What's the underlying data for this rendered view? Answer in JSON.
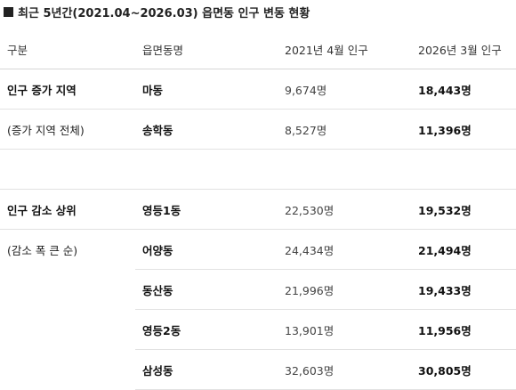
{
  "title": "최근 5년간(2021.04~2026.03) 읍면동 인구 변동 현황",
  "headers": [
    "구분",
    "읍면동명",
    "2021년 4월 인구",
    "2026년 3월 인구"
  ],
  "rows": [
    {
      "group": "인구 증가 지역",
      "dong": "마동",
      "pop2021": "9,674명",
      "pop2026": "18,443명"
    },
    {
      "group": "(증가 지역 전체)",
      "dong": "송학동",
      "pop2021": "8,527명",
      "pop2026": "11,396명"
    },
    {
      "group": "인구 감소 상위",
      "dong": "영등1동",
      "pop2021": "22,530명",
      "pop2026": "19,532명"
    },
    {
      "group": "(감소 폭 큰 순)",
      "dong": "어양동",
      "pop2021": "24,434명",
      "pop2026": "21,494명"
    },
    {
      "group": "",
      "dong": "동산동",
      "pop2021": "21,996명",
      "pop2026": "19,433명"
    },
    {
      "group": "",
      "dong": "영등2동",
      "pop2021": "13,901명",
      "pop2026": "11,956명"
    },
    {
      "group": "",
      "dong": "삼성동",
      "pop2021": "32,603명",
      "pop2026": "30,805명"
    }
  ]
}
